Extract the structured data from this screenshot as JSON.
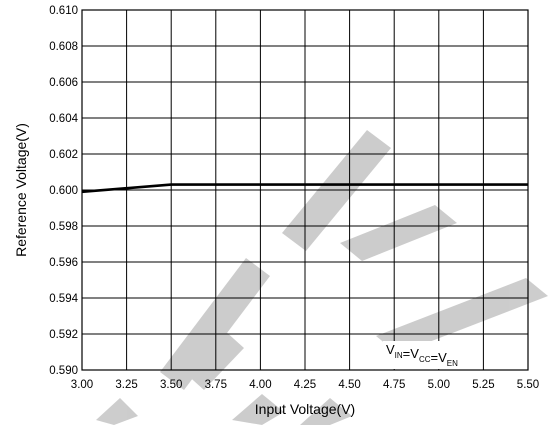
{
  "chart_data": {
    "type": "line",
    "xlabel": "Input Voltage(V)",
    "ylabel": "Reference Voltage(V)",
    "xlim": [
      3.0,
      5.5
    ],
    "ylim": [
      0.59,
      0.61
    ],
    "x_ticks": [
      "3.00",
      "3.25",
      "3.50",
      "3.75",
      "4.00",
      "4.25",
      "4.50",
      "4.75",
      "5.00",
      "5.25",
      "5.50"
    ],
    "y_ticks": [
      "0.590",
      "0.592",
      "0.594",
      "0.596",
      "0.598",
      "0.600",
      "0.602",
      "0.604",
      "0.606",
      "0.608",
      "0.610"
    ],
    "grid": true,
    "series": [
      {
        "x": [
          3.0,
          3.25,
          3.5,
          3.75,
          4.0,
          4.25,
          4.5,
          4.75,
          5.0,
          5.25,
          5.5
        ],
        "values": [
          0.5999,
          0.6001,
          0.6003,
          0.6003,
          0.6003,
          0.6003,
          0.6003,
          0.6003,
          0.6003,
          0.6003,
          0.6003
        ]
      }
    ],
    "annotation": {
      "parts": [
        {
          "main": "V",
          "sub": "IN"
        },
        {
          "main": "=V",
          "sub": "CC"
        },
        {
          "main": "=V",
          "sub": "EN"
        }
      ]
    },
    "colors": {
      "line": "#000000",
      "grid": "#000000",
      "watermark": "#c4c4c4"
    }
  }
}
